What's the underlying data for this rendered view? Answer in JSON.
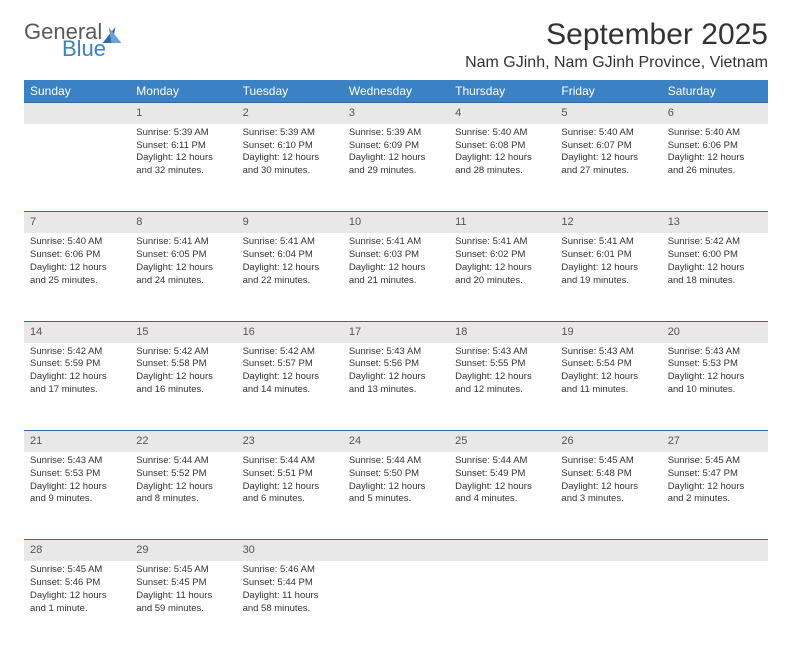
{
  "logo": {
    "part1": "General",
    "part2": "Blue"
  },
  "title": "September 2025",
  "location": "Nam GJinh, Nam GJinh Province, Vietnam",
  "daysOfWeek": [
    "Sunday",
    "Monday",
    "Tuesday",
    "Wednesday",
    "Thursday",
    "Friday",
    "Saturday"
  ],
  "colors": {
    "header_bg": "#3b82c4",
    "header_text": "#ffffff",
    "daynum_bg": "#e8e8e8",
    "border": "#2f6aa8",
    "text": "#333333"
  },
  "weeks": [
    [
      {
        "num": "",
        "lines": []
      },
      {
        "num": "1",
        "lines": [
          "Sunrise: 5:39 AM",
          "Sunset: 6:11 PM",
          "Daylight: 12 hours",
          "and 32 minutes."
        ]
      },
      {
        "num": "2",
        "lines": [
          "Sunrise: 5:39 AM",
          "Sunset: 6:10 PM",
          "Daylight: 12 hours",
          "and 30 minutes."
        ]
      },
      {
        "num": "3",
        "lines": [
          "Sunrise: 5:39 AM",
          "Sunset: 6:09 PM",
          "Daylight: 12 hours",
          "and 29 minutes."
        ]
      },
      {
        "num": "4",
        "lines": [
          "Sunrise: 5:40 AM",
          "Sunset: 6:08 PM",
          "Daylight: 12 hours",
          "and 28 minutes."
        ]
      },
      {
        "num": "5",
        "lines": [
          "Sunrise: 5:40 AM",
          "Sunset: 6:07 PM",
          "Daylight: 12 hours",
          "and 27 minutes."
        ]
      },
      {
        "num": "6",
        "lines": [
          "Sunrise: 5:40 AM",
          "Sunset: 6:06 PM",
          "Daylight: 12 hours",
          "and 26 minutes."
        ]
      }
    ],
    [
      {
        "num": "7",
        "lines": [
          "Sunrise: 5:40 AM",
          "Sunset: 6:06 PM",
          "Daylight: 12 hours",
          "and 25 minutes."
        ]
      },
      {
        "num": "8",
        "lines": [
          "Sunrise: 5:41 AM",
          "Sunset: 6:05 PM",
          "Daylight: 12 hours",
          "and 24 minutes."
        ]
      },
      {
        "num": "9",
        "lines": [
          "Sunrise: 5:41 AM",
          "Sunset: 6:04 PM",
          "Daylight: 12 hours",
          "and 22 minutes."
        ]
      },
      {
        "num": "10",
        "lines": [
          "Sunrise: 5:41 AM",
          "Sunset: 6:03 PM",
          "Daylight: 12 hours",
          "and 21 minutes."
        ]
      },
      {
        "num": "11",
        "lines": [
          "Sunrise: 5:41 AM",
          "Sunset: 6:02 PM",
          "Daylight: 12 hours",
          "and 20 minutes."
        ]
      },
      {
        "num": "12",
        "lines": [
          "Sunrise: 5:41 AM",
          "Sunset: 6:01 PM",
          "Daylight: 12 hours",
          "and 19 minutes."
        ]
      },
      {
        "num": "13",
        "lines": [
          "Sunrise: 5:42 AM",
          "Sunset: 6:00 PM",
          "Daylight: 12 hours",
          "and 18 minutes."
        ]
      }
    ],
    [
      {
        "num": "14",
        "lines": [
          "Sunrise: 5:42 AM",
          "Sunset: 5:59 PM",
          "Daylight: 12 hours",
          "and 17 minutes."
        ]
      },
      {
        "num": "15",
        "lines": [
          "Sunrise: 5:42 AM",
          "Sunset: 5:58 PM",
          "Daylight: 12 hours",
          "and 16 minutes."
        ]
      },
      {
        "num": "16",
        "lines": [
          "Sunrise: 5:42 AM",
          "Sunset: 5:57 PM",
          "Daylight: 12 hours",
          "and 14 minutes."
        ]
      },
      {
        "num": "17",
        "lines": [
          "Sunrise: 5:43 AM",
          "Sunset: 5:56 PM",
          "Daylight: 12 hours",
          "and 13 minutes."
        ]
      },
      {
        "num": "18",
        "lines": [
          "Sunrise: 5:43 AM",
          "Sunset: 5:55 PM",
          "Daylight: 12 hours",
          "and 12 minutes."
        ]
      },
      {
        "num": "19",
        "lines": [
          "Sunrise: 5:43 AM",
          "Sunset: 5:54 PM",
          "Daylight: 12 hours",
          "and 11 minutes."
        ]
      },
      {
        "num": "20",
        "lines": [
          "Sunrise: 5:43 AM",
          "Sunset: 5:53 PM",
          "Daylight: 12 hours",
          "and 10 minutes."
        ]
      }
    ],
    [
      {
        "num": "21",
        "lines": [
          "Sunrise: 5:43 AM",
          "Sunset: 5:53 PM",
          "Daylight: 12 hours",
          "and 9 minutes."
        ]
      },
      {
        "num": "22",
        "lines": [
          "Sunrise: 5:44 AM",
          "Sunset: 5:52 PM",
          "Daylight: 12 hours",
          "and 8 minutes."
        ]
      },
      {
        "num": "23",
        "lines": [
          "Sunrise: 5:44 AM",
          "Sunset: 5:51 PM",
          "Daylight: 12 hours",
          "and 6 minutes."
        ]
      },
      {
        "num": "24",
        "lines": [
          "Sunrise: 5:44 AM",
          "Sunset: 5:50 PM",
          "Daylight: 12 hours",
          "and 5 minutes."
        ]
      },
      {
        "num": "25",
        "lines": [
          "Sunrise: 5:44 AM",
          "Sunset: 5:49 PM",
          "Daylight: 12 hours",
          "and 4 minutes."
        ]
      },
      {
        "num": "26",
        "lines": [
          "Sunrise: 5:45 AM",
          "Sunset: 5:48 PM",
          "Daylight: 12 hours",
          "and 3 minutes."
        ]
      },
      {
        "num": "27",
        "lines": [
          "Sunrise: 5:45 AM",
          "Sunset: 5:47 PM",
          "Daylight: 12 hours",
          "and 2 minutes."
        ]
      }
    ],
    [
      {
        "num": "28",
        "lines": [
          "Sunrise: 5:45 AM",
          "Sunset: 5:46 PM",
          "Daylight: 12 hours",
          "and 1 minute."
        ]
      },
      {
        "num": "29",
        "lines": [
          "Sunrise: 5:45 AM",
          "Sunset: 5:45 PM",
          "Daylight: 11 hours",
          "and 59 minutes."
        ]
      },
      {
        "num": "30",
        "lines": [
          "Sunrise: 5:46 AM",
          "Sunset: 5:44 PM",
          "Daylight: 11 hours",
          "and 58 minutes."
        ]
      },
      {
        "num": "",
        "lines": []
      },
      {
        "num": "",
        "lines": []
      },
      {
        "num": "",
        "lines": []
      },
      {
        "num": "",
        "lines": []
      }
    ]
  ]
}
